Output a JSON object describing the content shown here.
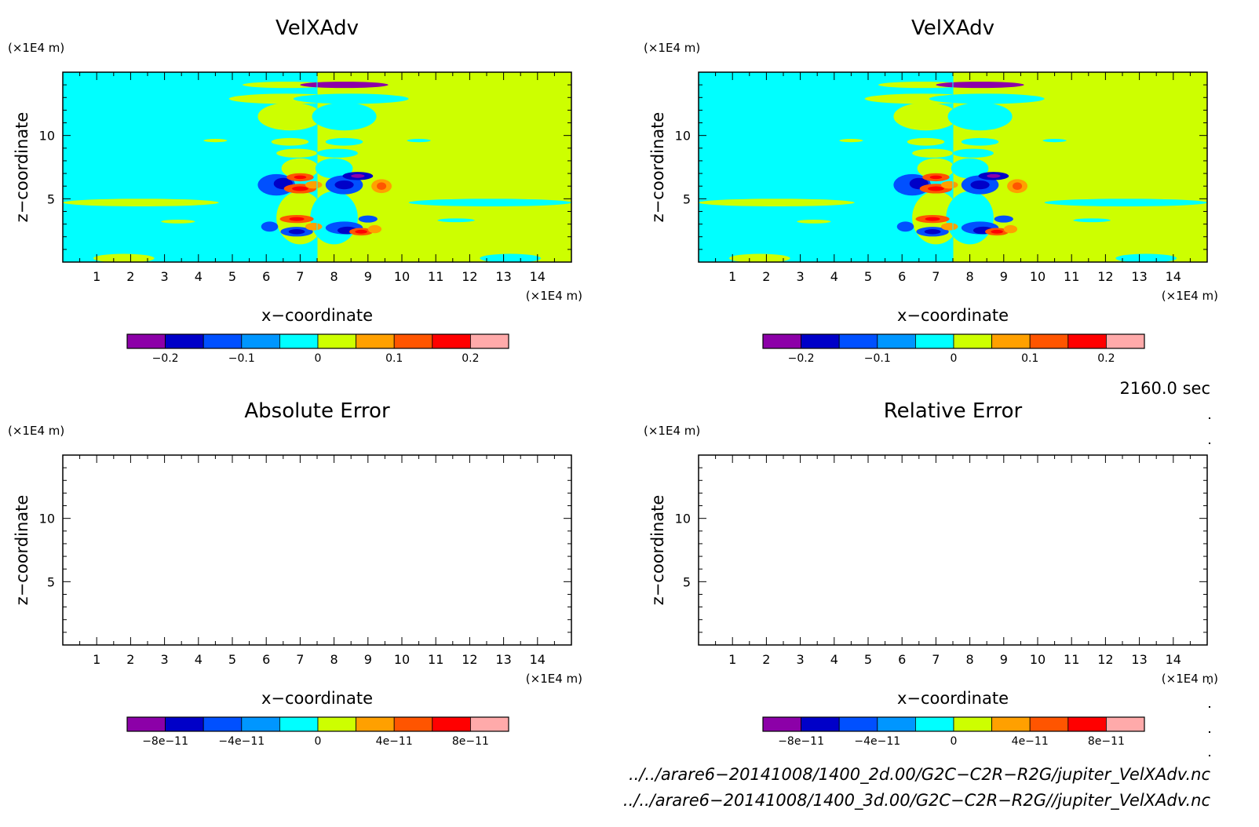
{
  "colors": {
    "velocity_levels": [
      "#8c00a8",
      "#0000c8",
      "#0050ff",
      "#0096ff",
      "#00ffff",
      "#cdff00",
      "#ffa000",
      "#ff5500",
      "#ff0000",
      "#ffaaaa"
    ],
    "background_negative": "#00ffff",
    "background_positive": "#cdff00"
  },
  "chart_data": [
    {
      "type": "heatmap",
      "title": "VelXAdv",
      "xlabel": "x−coordinate",
      "ylabel": "z−coordinate",
      "x_unit": "(×1E4 m)",
      "y_unit": "(×1E4 m)",
      "xlim": [
        0,
        15
      ],
      "ylim": [
        0,
        15
      ],
      "x_ticks": [
        "1",
        "2",
        "3",
        "4",
        "5",
        "6",
        "7",
        "8",
        "9",
        "10",
        "11",
        "12",
        "13",
        "14"
      ],
      "y_ticks": [
        "5",
        "10"
      ],
      "colorbar": {
        "levels": [
          -0.25,
          -0.2,
          -0.15,
          -0.1,
          -0.05,
          0,
          0.05,
          0.1,
          0.15,
          0.2,
          0.25
        ],
        "labels": [
          "−0.2",
          "−0.1",
          "0",
          "0.1",
          "0.2"
        ],
        "label_values": [
          -0.2,
          -0.1,
          0,
          0.1,
          0.2
        ]
      },
      "field": "filled"
    },
    {
      "type": "heatmap",
      "title": "VelXAdv",
      "xlabel": "x−coordinate",
      "ylabel": "z−coordinate",
      "x_unit": "(×1E4 m)",
      "y_unit": "(×1E4 m)",
      "xlim": [
        0,
        15
      ],
      "ylim": [
        0,
        15
      ],
      "x_ticks": [
        "1",
        "2",
        "3",
        "4",
        "5",
        "6",
        "7",
        "8",
        "9",
        "10",
        "11",
        "12",
        "13",
        "14"
      ],
      "y_ticks": [
        "5",
        "10"
      ],
      "colorbar": {
        "levels": [
          -0.25,
          -0.2,
          -0.15,
          -0.1,
          -0.05,
          0,
          0.05,
          0.1,
          0.15,
          0.2,
          0.25
        ],
        "labels": [
          "−0.2",
          "−0.1",
          "0",
          "0.1",
          "0.2"
        ],
        "label_values": [
          -0.2,
          -0.1,
          0,
          0.1,
          0.2
        ]
      },
      "field": "filled"
    },
    {
      "type": "heatmap",
      "title": "Absolute Error",
      "xlabel": "x−coordinate",
      "ylabel": "z−coordinate",
      "x_unit": "(×1E4 m)",
      "y_unit": "(×1E4 m)",
      "xlim": [
        0,
        15
      ],
      "ylim": [
        0,
        15
      ],
      "x_ticks": [
        "1",
        "2",
        "3",
        "4",
        "5",
        "6",
        "7",
        "8",
        "9",
        "10",
        "11",
        "12",
        "13",
        "14"
      ],
      "y_ticks": [
        "5",
        "10"
      ],
      "colorbar": {
        "levels": [
          -1e-10,
          -8e-11,
          -6e-11,
          -4e-11,
          -2e-11,
          0,
          2e-11,
          4e-11,
          6e-11,
          8e-11,
          1e-10
        ],
        "labels": [
          "−8e−11",
          "−4e−11",
          "0",
          "4e−11",
          "8e−11"
        ],
        "label_values": [
          -8e-11,
          -4e-11,
          0,
          4e-11,
          8e-11
        ]
      },
      "field": "empty"
    },
    {
      "type": "heatmap",
      "title": "Relative Error",
      "xlabel": "x−coordinate",
      "ylabel": "z−coordinate",
      "x_unit": "(×1E4 m)",
      "y_unit": "(×1E4 m)",
      "xlim": [
        0,
        15
      ],
      "ylim": [
        0,
        15
      ],
      "x_ticks": [
        "1",
        "2",
        "3",
        "4",
        "5",
        "6",
        "7",
        "8",
        "9",
        "10",
        "11",
        "12",
        "13",
        "14"
      ],
      "y_ticks": [
        "5",
        "10"
      ],
      "colorbar": {
        "levels": [
          -1e-10,
          -8e-11,
          -6e-11,
          -4e-11,
          -2e-11,
          0,
          2e-11,
          4e-11,
          6e-11,
          8e-11,
          1e-10
        ],
        "labels": [
          "−8e−11",
          "−4e−11",
          "0",
          "4e−11",
          "8e−11"
        ],
        "label_values": [
          -8e-11,
          -4e-11,
          0,
          4e-11,
          8e-11
        ]
      },
      "field": "empty"
    }
  ],
  "footer": {
    "time_label": "2160.0 sec",
    "file1": "../../arare6−20141008/1400_2d.00/G2C−C2R−R2G/jupiter_VelXAdv.nc",
    "file2": "../../arare6−20141008/1400_3d.00/G2C−C2R−R2G//jupiter_VelXAdv.nc"
  }
}
